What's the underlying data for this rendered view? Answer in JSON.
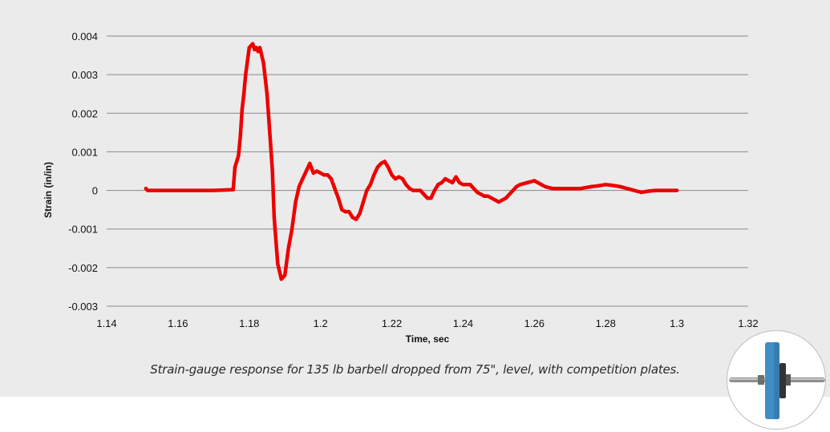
{
  "caption": "Strain-gauge response for 135 lb barbell dropped from 75\", level, with competition plates.",
  "colors": {
    "line": "#ec0000",
    "grid": "#8a8a8a",
    "background": "#ebebeb",
    "plate": "#3f8fc6"
  },
  "icons": {
    "badge": "barbell-icon"
  },
  "chart_data": {
    "type": "line",
    "title": "",
    "xlabel": "Time, sec",
    "ylabel": "Strain (in/in)",
    "xlim": [
      1.14,
      1.32
    ],
    "ylim": [
      -0.003,
      0.004
    ],
    "x_ticks": [
      1.14,
      1.16,
      1.18,
      1.2,
      1.22,
      1.24,
      1.26,
      1.28,
      1.3,
      1.32
    ],
    "x_tick_labels": [
      "1.14",
      "1.16",
      "1.18",
      "1.2",
      "1.22",
      "1.24",
      "1.26",
      "1.28",
      "1.3",
      "1.32"
    ],
    "y_ticks": [
      0.004,
      0.003,
      0.002,
      0.001,
      0,
      -0.001,
      -0.002,
      -0.003
    ],
    "y_tick_labels": [
      "0.004",
      "0.003",
      "0.002",
      "0.001",
      "0",
      "-0.001",
      "-0.002",
      "-0.003"
    ],
    "grid": "horizontal",
    "legend": "none",
    "series": [
      {
        "x": [
          1.151,
          1.1515,
          1.16,
          1.17,
          1.1755,
          1.176,
          1.177,
          1.1775,
          1.178,
          1.1785,
          1.179,
          1.18,
          1.181,
          1.1815,
          1.182,
          1.1825,
          1.183,
          1.184,
          1.185,
          1.186,
          1.1865,
          1.187,
          1.188,
          1.189,
          1.19,
          1.191,
          1.192,
          1.193,
          1.194,
          1.195,
          1.196,
          1.197,
          1.198,
          1.199,
          1.2,
          1.201,
          1.202,
          1.203,
          1.204,
          1.205,
          1.206,
          1.207,
          1.208,
          1.209,
          1.21,
          1.211,
          1.212,
          1.213,
          1.214,
          1.215,
          1.216,
          1.217,
          1.218,
          1.219,
          1.22,
          1.221,
          1.222,
          1.223,
          1.224,
          1.225,
          1.226,
          1.228,
          1.23,
          1.231,
          1.232,
          1.233,
          1.234,
          1.235,
          1.236,
          1.237,
          1.238,
          1.239,
          1.24,
          1.241,
          1.242,
          1.243,
          1.244,
          1.245,
          1.246,
          1.247,
          1.248,
          1.25,
          1.252,
          1.254,
          1.255,
          1.256,
          1.258,
          1.26,
          1.263,
          1.265,
          1.268,
          1.27,
          1.273,
          1.276,
          1.278,
          1.28,
          1.282,
          1.284,
          1.286,
          1.288,
          1.29,
          1.292,
          1.294,
          1.296,
          1.298,
          1.3
        ],
        "y": [
          5e-05,
          0.0,
          0.0,
          0.0,
          2e-05,
          0.0006,
          0.0009,
          0.0014,
          0.0021,
          0.0025,
          0.003,
          0.0037,
          0.0038,
          0.00365,
          0.0037,
          0.0036,
          0.0037,
          0.0033,
          0.0025,
          0.0012,
          0.0005,
          -0.0007,
          -0.0019,
          -0.0023,
          -0.0022,
          -0.0015,
          -0.001,
          -0.0003,
          0.0001,
          0.0003,
          0.0005,
          0.0007,
          0.00045,
          0.0005,
          0.00045,
          0.0004,
          0.0004,
          0.0003,
          5e-05,
          -0.0002,
          -0.0005,
          -0.00055,
          -0.00055,
          -0.0007,
          -0.00075,
          -0.0006,
          -0.0003,
          0.0,
          0.00015,
          0.0004,
          0.0006,
          0.0007,
          0.00075,
          0.0006,
          0.0004,
          0.0003,
          0.00035,
          0.0003,
          0.00015,
          5e-05,
          0.0,
          0.0,
          -0.0002,
          -0.0002,
          0.0,
          0.00015,
          0.0002,
          0.0003,
          0.00025,
          0.0002,
          0.00035,
          0.0002,
          0.00015,
          0.00015,
          0.00015,
          5e-05,
          -5e-05,
          -0.0001,
          -0.00015,
          -0.00015,
          -0.0002,
          -0.0003,
          -0.0002,
          0.0,
          0.0001,
          0.00015,
          0.0002,
          0.00025,
          0.0001,
          5e-05,
          5e-05,
          5e-05,
          5e-05,
          0.0001,
          0.00012,
          0.00015,
          0.00013,
          0.0001,
          5e-05,
          0.0,
          -5e-05,
          -2e-05,
          0.0,
          0.0,
          0.0,
          0.0
        ]
      }
    ]
  }
}
